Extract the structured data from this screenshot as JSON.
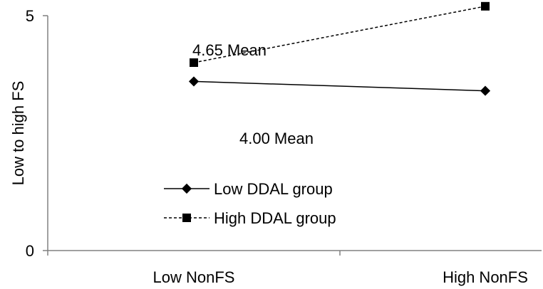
{
  "chart_data": {
    "type": "line",
    "title": "",
    "xlabel": "",
    "ylabel": "Low to high FS",
    "categories": [
      "Low NonFS",
      "High NonFS"
    ],
    "ylim": [
      0,
      5
    ],
    "yticks": [
      "0",
      "5"
    ],
    "grid": false,
    "legend_position": "center-left",
    "series": [
      {
        "name": "Low DDAL group",
        "values": [
          3.6,
          3.4
        ],
        "line_style": "solid",
        "marker": "diamond",
        "color": "#000000"
      },
      {
        "name": "High DDAL group",
        "values": [
          4.0,
          5.2
        ],
        "line_style": "dashed",
        "marker": "square",
        "color": "#000000"
      }
    ],
    "annotations": [
      "4.65 Mean",
      "4.00 Mean"
    ]
  }
}
